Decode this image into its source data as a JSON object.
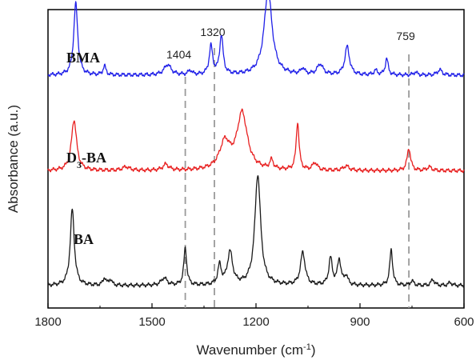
{
  "chart_data": {
    "type": "line",
    "xlabel": "Wavenumber (cm",
    "xlabel_sup": "-1",
    "xlabel_end": ")",
    "ylabel": "Absorbance (a.u.)",
    "xlim": [
      1800,
      600
    ],
    "x_reversed": true,
    "ylim": [
      0,
      1
    ],
    "y_ticks_labeled": false,
    "x_ticks": [
      1800,
      1500,
      1200,
      900,
      600
    ],
    "x_tick_labels": [
      "1800",
      "1500",
      "1200",
      "900",
      "600"
    ],
    "x_minor_ticks": [
      1650,
      1350,
      1050,
      750
    ],
    "reference_lines": [
      {
        "x": 1404,
        "label": "1404"
      },
      {
        "x": 1320,
        "label": "1320"
      },
      {
        "x": 759,
        "label": "759"
      }
    ],
    "series": [
      {
        "name": "BMA",
        "label_main": "BMA",
        "label_sub": "",
        "label_rest": "",
        "color": "#2020e8",
        "baseline": 0.78,
        "peaks": [
          {
            "x": 1720,
            "h": 0.24,
            "w": 7
          },
          {
            "x": 1637,
            "h": 0.03,
            "w": 5
          },
          {
            "x": 1455,
            "h": 0.035,
            "w": 12
          },
          {
            "x": 1390,
            "h": 0.015,
            "w": 6
          },
          {
            "x": 1330,
            "h": 0.095,
            "w": 6
          },
          {
            "x": 1300,
            "h": 0.13,
            "w": 6
          },
          {
            "x": 1165,
            "h": 0.28,
            "w": 14
          },
          {
            "x": 1065,
            "h": 0.02,
            "w": 6
          },
          {
            "x": 1015,
            "h": 0.035,
            "w": 10
          },
          {
            "x": 937,
            "h": 0.095,
            "w": 8
          },
          {
            "x": 855,
            "h": 0.015,
            "w": 6
          },
          {
            "x": 823,
            "h": 0.055,
            "w": 5
          },
          {
            "x": 740,
            "h": 0.01,
            "w": 6
          },
          {
            "x": 670,
            "h": 0.018,
            "w": 8
          }
        ]
      },
      {
        "name": "D3-BA",
        "label_main": "D",
        "label_sub": "3",
        "label_rest": "-BA",
        "color": "#e82020",
        "baseline": 0.46,
        "peaks": [
          {
            "x": 1725,
            "h": 0.17,
            "w": 9
          },
          {
            "x": 1575,
            "h": 0.012,
            "w": 12
          },
          {
            "x": 1460,
            "h": 0.02,
            "w": 10
          },
          {
            "x": 1290,
            "h": 0.09,
            "w": 18
          },
          {
            "x": 1240,
            "h": 0.19,
            "w": 18
          },
          {
            "x": 1155,
            "h": 0.03,
            "w": 6
          },
          {
            "x": 1080,
            "h": 0.16,
            "w": 5
          },
          {
            "x": 1030,
            "h": 0.025,
            "w": 8
          },
          {
            "x": 940,
            "h": 0.015,
            "w": 10
          },
          {
            "x": 759,
            "h": 0.075,
            "w": 6
          },
          {
            "x": 700,
            "h": 0.012,
            "w": 8
          }
        ]
      },
      {
        "name": "BA",
        "label_main": "BA",
        "label_sub": "",
        "label_rest": "",
        "color": "#1a1a1a",
        "baseline": 0.075,
        "peaks": [
          {
            "x": 1730,
            "h": 0.255,
            "w": 7
          },
          {
            "x": 1637,
            "h": 0.025,
            "w": 5
          },
          {
            "x": 1620,
            "h": 0.02,
            "w": 5
          },
          {
            "x": 1465,
            "h": 0.025,
            "w": 10
          },
          {
            "x": 1404,
            "h": 0.125,
            "w": 5
          },
          {
            "x": 1305,
            "h": 0.065,
            "w": 6
          },
          {
            "x": 1275,
            "h": 0.11,
            "w": 9
          },
          {
            "x": 1195,
            "h": 0.37,
            "w": 10
          },
          {
            "x": 1065,
            "h": 0.11,
            "w": 8
          },
          {
            "x": 985,
            "h": 0.09,
            "w": 6
          },
          {
            "x": 960,
            "h": 0.085,
            "w": 6
          },
          {
            "x": 940,
            "h": 0.03,
            "w": 6
          },
          {
            "x": 810,
            "h": 0.12,
            "w": 5
          },
          {
            "x": 750,
            "h": 0.015,
            "w": 6
          },
          {
            "x": 690,
            "h": 0.02,
            "w": 6
          },
          {
            "x": 640,
            "h": 0.01,
            "w": 6
          }
        ]
      }
    ]
  }
}
